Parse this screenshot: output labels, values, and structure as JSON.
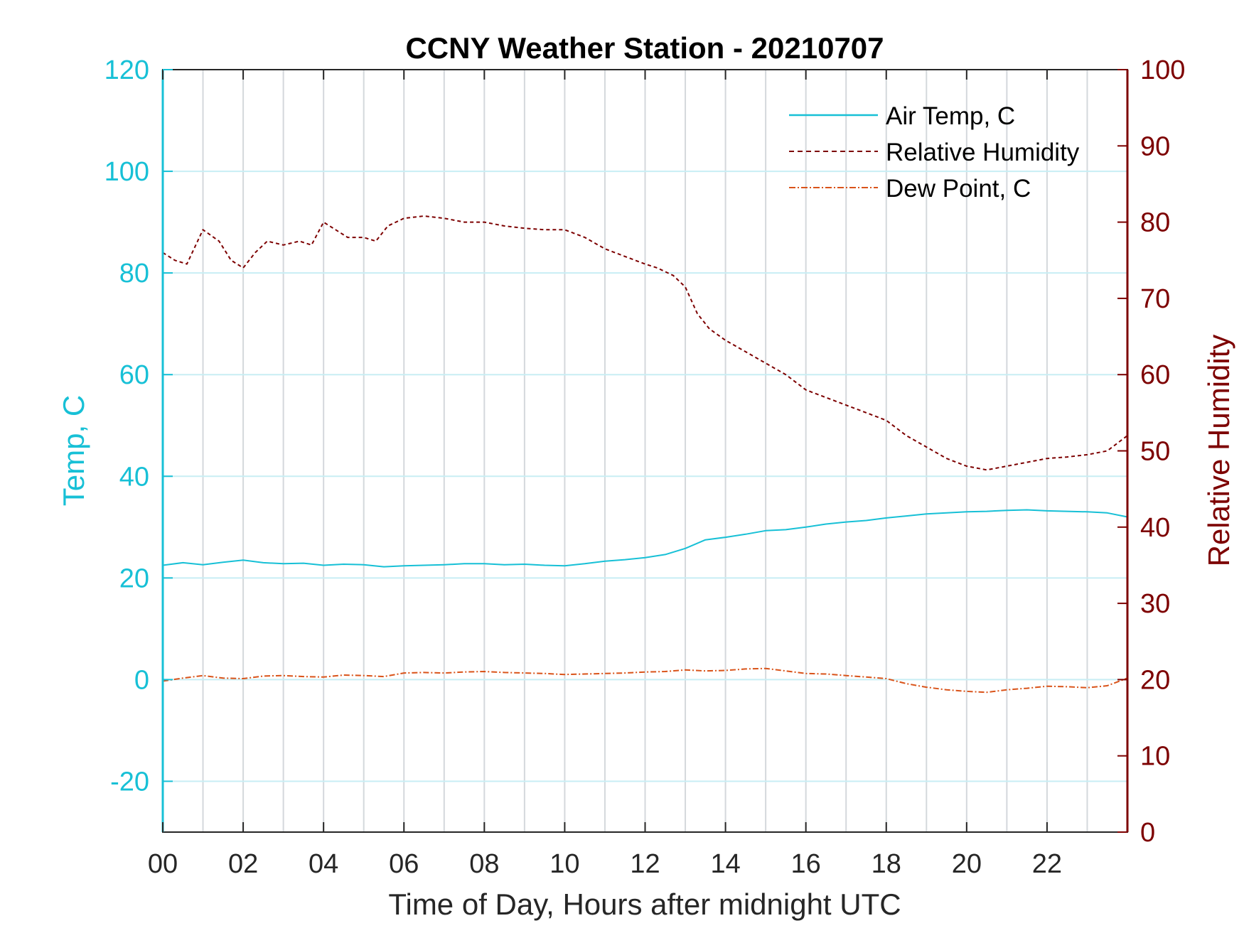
{
  "chart_data": {
    "type": "line",
    "title": "CCNY Weather Station - 20210707",
    "xlabel": "Time of Day, Hours after midnight UTC",
    "ylabel_left": "Temp, C",
    "ylabel_right": "Relative Humidity",
    "xlim": [
      0,
      24
    ],
    "ylim_left": [
      -30,
      120
    ],
    "ylim_right": [
      0,
      100
    ],
    "x_ticks": [
      0,
      2,
      4,
      6,
      8,
      10,
      12,
      14,
      16,
      18,
      20,
      22
    ],
    "x_tick_labels": [
      "00",
      "02",
      "04",
      "06",
      "08",
      "10",
      "12",
      "14",
      "16",
      "18",
      "20",
      "22"
    ],
    "y_left_ticks": [
      -20,
      0,
      20,
      40,
      60,
      80,
      100,
      120
    ],
    "y_left_tick_labels": [
      "-20",
      "0",
      "20",
      "40",
      "60",
      "80",
      "100",
      "120"
    ],
    "y_right_ticks": [
      0,
      10,
      20,
      30,
      40,
      50,
      60,
      70,
      80,
      90,
      100
    ],
    "y_right_tick_labels": [
      "0",
      "10",
      "20",
      "30",
      "40",
      "50",
      "60",
      "70",
      "80",
      "90",
      "100"
    ],
    "grid": true,
    "legend_position": "top-right",
    "colors": {
      "air_temp": "#17c0d6",
      "humidity": "#7d0000",
      "dew_point": "#d95319",
      "left_axis": "#17c0d6",
      "right_axis": "#7d0000",
      "vgrid": "#d4d8dc",
      "hgrid": "#c8eef4"
    },
    "series": [
      {
        "name": "Air Temp, C",
        "axis": "left",
        "style": "solid",
        "x": [
          0,
          0.5,
          1,
          1.5,
          2,
          2.5,
          3,
          3.5,
          4,
          4.5,
          5,
          5.5,
          6,
          6.5,
          7,
          7.5,
          8,
          8.5,
          9,
          9.5,
          10,
          10.5,
          11,
          11.5,
          12,
          12.5,
          13,
          13.5,
          14,
          14.5,
          15,
          15.5,
          16,
          16.5,
          17,
          17.5,
          18,
          18.5,
          19,
          19.5,
          20,
          20.5,
          21,
          21.5,
          22,
          22.5,
          23,
          23.5,
          24
        ],
        "values": [
          22.5,
          23.0,
          22.6,
          23.1,
          23.5,
          23.0,
          22.8,
          22.9,
          22.5,
          22.7,
          22.6,
          22.2,
          22.4,
          22.5,
          22.6,
          22.8,
          22.8,
          22.6,
          22.7,
          22.5,
          22.4,
          22.8,
          23.3,
          23.6,
          24.0,
          24.6,
          25.8,
          27.5,
          28.0,
          28.6,
          29.3,
          29.5,
          30.0,
          30.6,
          31.0,
          31.3,
          31.8,
          32.2,
          32.6,
          32.8,
          33.0,
          33.1,
          33.3,
          33.4,
          33.2,
          33.1,
          33.0,
          32.8,
          32.0
        ]
      },
      {
        "name": "Relative Humidity",
        "axis": "right",
        "style": "dashed",
        "x": [
          0,
          0.3,
          0.6,
          1,
          1.4,
          1.7,
          2,
          2.3,
          2.6,
          3,
          3.4,
          3.7,
          4,
          4.3,
          4.6,
          5,
          5.3,
          5.6,
          6,
          6.5,
          7,
          7.5,
          8,
          8.5,
          9,
          9.5,
          10,
          10.5,
          11,
          11.5,
          12,
          12.3,
          12.7,
          13,
          13.3,
          13.6,
          14,
          14.5,
          15,
          15.5,
          16,
          16.5,
          17,
          17.5,
          18,
          18.5,
          19,
          19.5,
          20,
          20.5,
          21,
          21.5,
          22,
          22.5,
          23,
          23.5,
          24
        ],
        "values": [
          76.0,
          75.0,
          74.5,
          79.0,
          77.5,
          75.0,
          74.0,
          76.0,
          77.5,
          77.0,
          77.5,
          77.0,
          80.0,
          79.0,
          78.0,
          78.0,
          77.5,
          79.5,
          80.5,
          80.8,
          80.5,
          80.0,
          80.0,
          79.5,
          79.2,
          79.0,
          79.0,
          78.0,
          76.5,
          75.5,
          74.5,
          74.0,
          73.0,
          71.5,
          68.0,
          66.0,
          64.5,
          63.0,
          61.5,
          60.0,
          58.0,
          57.0,
          56.0,
          55.0,
          54.0,
          52.0,
          50.5,
          49.0,
          48.0,
          47.5,
          48.0,
          48.5,
          49.0,
          49.2,
          49.5,
          50.0,
          52.0
        ]
      },
      {
        "name": "Dew Point, C",
        "axis": "left",
        "style": "dash-dot",
        "x": [
          0,
          0.5,
          1,
          1.5,
          2,
          2.5,
          3,
          3.5,
          4,
          4.5,
          5,
          5.5,
          6,
          6.5,
          7,
          7.5,
          8,
          8.5,
          9,
          9.5,
          10,
          10.5,
          11,
          11.5,
          12,
          12.5,
          13,
          13.5,
          14,
          14.5,
          15,
          15.5,
          16,
          16.5,
          17,
          17.5,
          18,
          18.5,
          19,
          19.5,
          20,
          20.5,
          21,
          21.5,
          22,
          22.5,
          23,
          23.5,
          24
        ],
        "values": [
          -0.3,
          0.3,
          0.8,
          0.3,
          0.2,
          0.7,
          0.8,
          0.6,
          0.5,
          0.9,
          0.8,
          0.6,
          1.3,
          1.4,
          1.3,
          1.5,
          1.6,
          1.4,
          1.3,
          1.2,
          1.0,
          1.1,
          1.2,
          1.3,
          1.5,
          1.6,
          1.9,
          1.7,
          1.8,
          2.1,
          2.2,
          1.7,
          1.2,
          1.1,
          0.8,
          0.5,
          0.2,
          -0.8,
          -1.5,
          -2.0,
          -2.3,
          -2.5,
          -2.0,
          -1.7,
          -1.3,
          -1.4,
          -1.6,
          -1.2,
          0.3
        ]
      }
    ]
  }
}
